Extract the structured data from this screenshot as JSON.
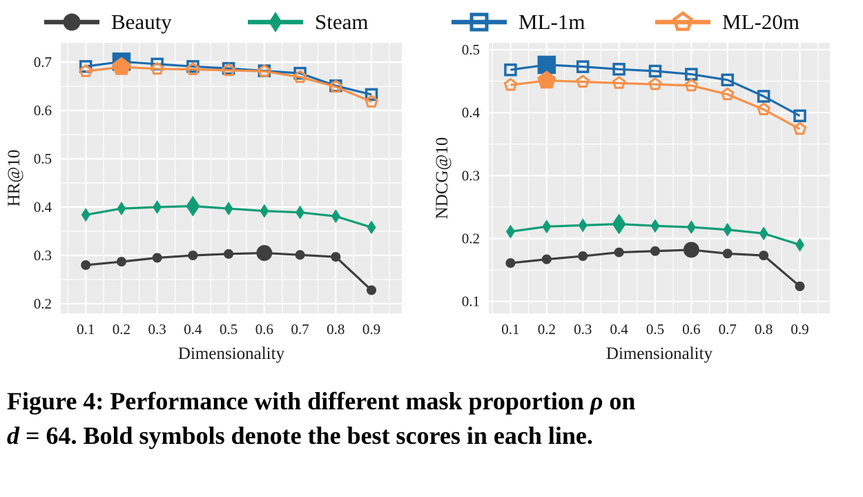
{
  "style": {
    "plot_bg": "#ebebeb",
    "grid_color": "#ffffff",
    "beauty_color": "#3f3f3f",
    "steam_color": "#109d76",
    "ml1m_color": "#1d6cad",
    "ml20m_color": "#f89048"
  },
  "legend": {
    "items": [
      {
        "label": "Beauty",
        "color": "#3f3f3f",
        "marker": "circle",
        "marker_fill": "solid"
      },
      {
        "label": "Steam",
        "color": "#109d76",
        "marker": "diamond",
        "marker_fill": "solid"
      },
      {
        "label": "ML-1m",
        "color": "#1d6cad",
        "marker": "square",
        "marker_fill": "open"
      },
      {
        "label": "ML-20m",
        "color": "#f89048",
        "marker": "pentagon",
        "marker_fill": "open"
      }
    ]
  },
  "chart_data": [
    {
      "type": "line",
      "title": "",
      "xlabel": "Dimensionality",
      "ylabel": "HR@10",
      "x": [
        0.1,
        0.2,
        0.3,
        0.4,
        0.5,
        0.6,
        0.7,
        0.8,
        0.9
      ],
      "xticks": [
        0.1,
        0.2,
        0.3,
        0.4,
        0.5,
        0.6,
        0.7,
        0.8,
        0.9
      ],
      "yticks": [
        0.2,
        0.3,
        0.4,
        0.5,
        0.6,
        0.7
      ],
      "xlim": [
        0.03,
        0.985
      ],
      "ylim": [
        0.18,
        0.74
      ],
      "grid": true,
      "legend_position": "top",
      "bold_note": "largest marker marks best score in each line",
      "series": [
        {
          "name": "Beauty",
          "color": "#3f3f3f",
          "marker": "circle",
          "marker_fill": "solid",
          "best_index": 5,
          "values": [
            0.28,
            0.287,
            0.295,
            0.3,
            0.303,
            0.305,
            0.301,
            0.297,
            0.228
          ]
        },
        {
          "name": "Steam",
          "color": "#109d76",
          "marker": "diamond",
          "marker_fill": "solid",
          "best_index": 3,
          "values": [
            0.384,
            0.397,
            0.4,
            0.402,
            0.397,
            0.392,
            0.389,
            0.381,
            0.358
          ]
        },
        {
          "name": "ML-1m",
          "color": "#1d6cad",
          "marker": "square",
          "marker_fill": "open",
          "best_index": 1,
          "values": [
            0.691,
            0.701,
            0.696,
            0.691,
            0.687,
            0.682,
            0.677,
            0.651,
            0.633
          ]
        },
        {
          "name": "ML-20m",
          "color": "#f89048",
          "marker": "pentagon",
          "marker_fill": "open",
          "best_index": 1,
          "values": [
            0.681,
            0.69,
            0.686,
            0.685,
            0.683,
            0.681,
            0.669,
            0.649,
            0.618
          ]
        }
      ]
    },
    {
      "type": "line",
      "title": "",
      "xlabel": "Dimensionality",
      "ylabel": "NDCG@10",
      "x": [
        0.1,
        0.2,
        0.3,
        0.4,
        0.5,
        0.6,
        0.7,
        0.8,
        0.9
      ],
      "xticks": [
        0.1,
        0.2,
        0.3,
        0.4,
        0.5,
        0.6,
        0.7,
        0.8,
        0.9
      ],
      "yticks": [
        0.1,
        0.2,
        0.3,
        0.4,
        0.5
      ],
      "xlim": [
        0.04,
        0.983
      ],
      "ylim": [
        0.081,
        0.511
      ],
      "grid": true,
      "legend_position": "top",
      "bold_note": "largest marker marks best score in each line",
      "series": [
        {
          "name": "Beauty",
          "color": "#3f3f3f",
          "marker": "circle",
          "marker_fill": "solid",
          "best_index": 5,
          "values": [
            0.161,
            0.167,
            0.172,
            0.178,
            0.18,
            0.182,
            0.176,
            0.173,
            0.124
          ]
        },
        {
          "name": "Steam",
          "color": "#109d76",
          "marker": "diamond",
          "marker_fill": "solid",
          "best_index": 3,
          "values": [
            0.211,
            0.219,
            0.221,
            0.223,
            0.22,
            0.218,
            0.214,
            0.208,
            0.19
          ]
        },
        {
          "name": "ML-1m",
          "color": "#1d6cad",
          "marker": "square",
          "marker_fill": "open",
          "best_index": 1,
          "values": [
            0.468,
            0.476,
            0.473,
            0.469,
            0.466,
            0.461,
            0.452,
            0.426,
            0.395
          ]
        },
        {
          "name": "ML-20m",
          "color": "#f89048",
          "marker": "pentagon",
          "marker_fill": "open",
          "best_index": 1,
          "values": [
            0.444,
            0.451,
            0.449,
            0.447,
            0.445,
            0.443,
            0.429,
            0.405,
            0.374
          ]
        }
      ]
    }
  ],
  "caption": {
    "line1": {
      "pre": "Figure 4: Performance with different mask proportion ",
      "math": "ρ",
      "post": " on"
    },
    "line2": {
      "math": "d",
      "mid": " = 64. ",
      "post": "Bold symbols denote the best scores in each line."
    }
  }
}
